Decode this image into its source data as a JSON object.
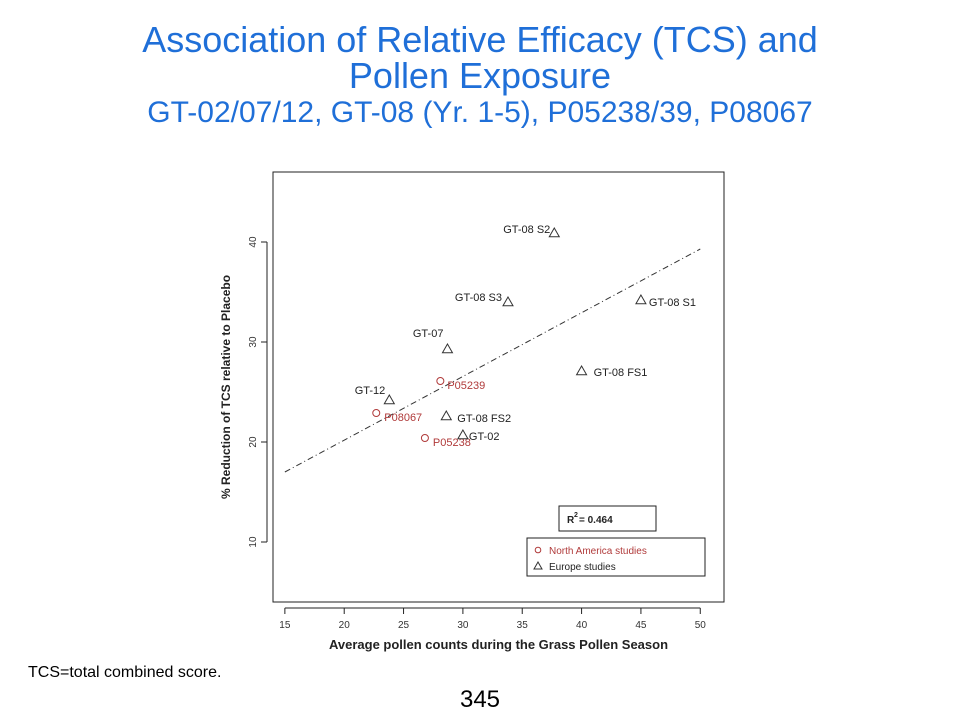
{
  "slide": {
    "title": [
      "Association of Relative Efficacy (TCS) and",
      "Pollen Exposure"
    ],
    "subtitle": "GT-02/07/12, GT-08 (Yr. 1-5), P05238/39, P08067",
    "footnote": "TCS=total combined score.",
    "page_number": "345"
  },
  "colors": {
    "title": "#1f6fd8",
    "north_america": "#b03a3a",
    "europe": "#333333",
    "trend": "#333333"
  },
  "chart_data": {
    "type": "scatter",
    "xlabel": "Average pollen counts during the Grass Pollen Season",
    "ylabel": "% Reduction of TCS relative to Placebo",
    "xlim": [
      14,
      52
    ],
    "ylim": [
      4,
      47
    ],
    "x_ticks": [
      15,
      20,
      25,
      30,
      35,
      40,
      45,
      50
    ],
    "y_ticks": [
      10,
      20,
      30,
      40
    ],
    "grid": false,
    "trendline": {
      "style": "dash-dot",
      "x": [
        15,
        50
      ],
      "y": [
        17.0,
        39.3
      ]
    },
    "r2_label": "0.464",
    "series": [
      {
        "name": "North America studies",
        "marker": "circle",
        "points": [
          {
            "label": "P05239",
            "x": 28.1,
            "y": 26.1
          },
          {
            "label": "P08067",
            "x": 22.7,
            "y": 22.9
          },
          {
            "label": "P05238",
            "x": 26.8,
            "y": 20.4
          }
        ]
      },
      {
        "name": "Europe studies",
        "marker": "triangle",
        "points": [
          {
            "label": "GT-08 S2",
            "x": 37.7,
            "y": 40.9
          },
          {
            "label": "GT-08 S3",
            "x": 33.8,
            "y": 34.0
          },
          {
            "label": "GT-08 S1",
            "x": 45.0,
            "y": 34.2
          },
          {
            "label": "GT-07",
            "x": 28.7,
            "y": 29.3
          },
          {
            "label": "GT-08 FS1",
            "x": 40.0,
            "y": 27.1
          },
          {
            "label": "GT-12",
            "x": 23.8,
            "y": 24.2
          },
          {
            "label": "GT-08 FS2",
            "x": 28.6,
            "y": 22.6
          },
          {
            "label": "GT-02",
            "x": 30.0,
            "y": 20.7
          }
        ]
      }
    ]
  }
}
